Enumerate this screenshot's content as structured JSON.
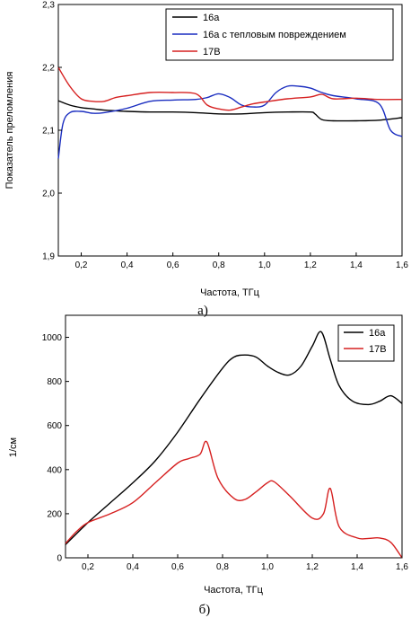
{
  "chart_data": [
    {
      "type": "line",
      "caption": "а)",
      "xlabel": "Частота, ТГц",
      "ylabel": "Показатель преломления",
      "xlim": [
        0.1,
        1.6
      ],
      "ylim": [
        1.9,
        2.3
      ],
      "xticks": [
        "0,2",
        "0,4",
        "0,6",
        "0,8",
        "1,0",
        "1,2",
        "1,4",
        "1,6"
      ],
      "xtick_values": [
        0.2,
        0.4,
        0.6,
        0.8,
        1.0,
        1.2,
        1.4,
        1.6
      ],
      "yticks": [
        "1,9",
        "2,0",
        "2,1",
        "2,2",
        "2,3"
      ],
      "ytick_values": [
        1.9,
        2.0,
        2.1,
        2.2,
        2.3
      ],
      "grid": false,
      "legend_position": "top-right",
      "series": [
        {
          "name": "16а",
          "color": "#000000",
          "x": [
            0.1,
            0.15,
            0.2,
            0.25,
            0.3,
            0.4,
            0.5,
            0.6,
            0.7,
            0.8,
            0.9,
            1.0,
            1.1,
            1.2,
            1.22,
            1.25,
            1.3,
            1.4,
            1.5,
            1.6
          ],
          "y": [
            2.147,
            2.14,
            2.136,
            2.134,
            2.132,
            2.13,
            2.129,
            2.129,
            2.128,
            2.126,
            2.126,
            2.128,
            2.129,
            2.129,
            2.126,
            2.117,
            2.115,
            2.115,
            2.116,
            2.12
          ]
        },
        {
          "name": "16а с тепловым повреждением",
          "color": "#1a2dc0",
          "x": [
            0.1,
            0.12,
            0.15,
            0.2,
            0.25,
            0.3,
            0.4,
            0.5,
            0.6,
            0.7,
            0.75,
            0.8,
            0.85,
            0.9,
            0.95,
            1.0,
            1.05,
            1.1,
            1.15,
            1.2,
            1.25,
            1.3,
            1.4,
            1.5,
            1.55,
            1.6
          ],
          "y": [
            2.055,
            2.11,
            2.128,
            2.13,
            2.127,
            2.128,
            2.135,
            2.146,
            2.148,
            2.149,
            2.152,
            2.158,
            2.152,
            2.14,
            2.137,
            2.14,
            2.16,
            2.17,
            2.17,
            2.167,
            2.16,
            2.155,
            2.15,
            2.142,
            2.1,
            2.09
          ]
        },
        {
          "name": "17В",
          "color": "#d62020",
          "x": [
            0.1,
            0.15,
            0.2,
            0.25,
            0.3,
            0.35,
            0.4,
            0.5,
            0.6,
            0.7,
            0.75,
            0.8,
            0.85,
            0.9,
            0.95,
            1.0,
            1.1,
            1.2,
            1.25,
            1.3,
            1.4,
            1.5,
            1.6
          ],
          "y": [
            2.2,
            2.17,
            2.15,
            2.146,
            2.146,
            2.152,
            2.155,
            2.16,
            2.16,
            2.158,
            2.14,
            2.134,
            2.132,
            2.137,
            2.142,
            2.145,
            2.15,
            2.153,
            2.157,
            2.15,
            2.151,
            2.149,
            2.149
          ]
        }
      ]
    },
    {
      "type": "line",
      "caption": "б)",
      "xlabel": "Частота, ТГц",
      "ylabel": "1/см",
      "xlim": [
        0.1,
        1.6
      ],
      "ylim": [
        0,
        1100
      ],
      "xticks": [
        "0,2",
        "0,4",
        "0,6",
        "0,8",
        "1,0",
        "1,2",
        "1,4",
        "1,6"
      ],
      "xtick_values": [
        0.2,
        0.4,
        0.6,
        0.8,
        1.0,
        1.2,
        1.4,
        1.6
      ],
      "yticks": [
        "0",
        "200",
        "400",
        "600",
        "800",
        "1000"
      ],
      "ytick_values": [
        0,
        200,
        400,
        600,
        800,
        1000
      ],
      "grid": false,
      "legend_position": "top-right",
      "series": [
        {
          "name": "16а",
          "color": "#000000",
          "x": [
            0.1,
            0.2,
            0.3,
            0.4,
            0.5,
            0.6,
            0.7,
            0.8,
            0.85,
            0.9,
            0.95,
            1.0,
            1.05,
            1.1,
            1.15,
            1.2,
            1.24,
            1.28,
            1.32,
            1.38,
            1.45,
            1.5,
            1.55,
            1.6
          ],
          "y": [
            60,
            160,
            250,
            340,
            440,
            570,
            720,
            860,
            910,
            920,
            910,
            870,
            840,
            830,
            870,
            960,
            1025,
            900,
            780,
            710,
            695,
            710,
            735,
            700
          ]
        },
        {
          "name": "17В",
          "color": "#d62020",
          "x": [
            0.1,
            0.15,
            0.2,
            0.3,
            0.4,
            0.5,
            0.6,
            0.65,
            0.7,
            0.73,
            0.78,
            0.85,
            0.9,
            0.95,
            1.0,
            1.03,
            1.1,
            1.2,
            1.25,
            1.28,
            1.32,
            1.4,
            1.45,
            1.5,
            1.55,
            1.6
          ],
          "y": [
            65,
            120,
            160,
            200,
            250,
            340,
            430,
            450,
            470,
            525,
            360,
            270,
            265,
            300,
            340,
            345,
            280,
            180,
            200,
            315,
            140,
            90,
            88,
            90,
            70,
            0
          ]
        }
      ]
    }
  ]
}
